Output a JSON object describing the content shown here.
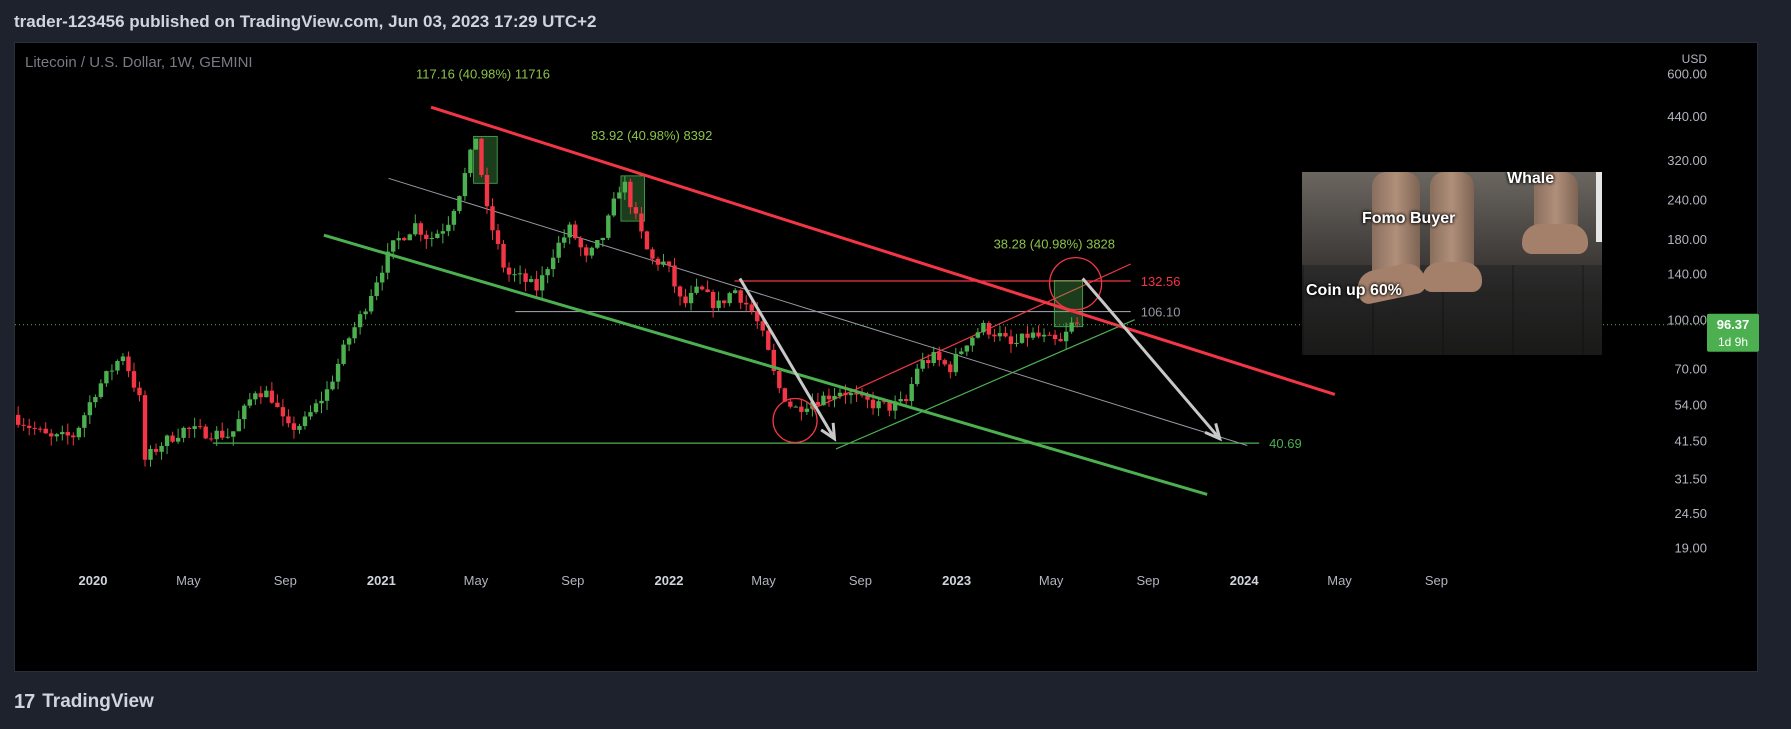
{
  "header": {
    "publish_line": "trader-123456 published on TradingView.com, Jun 03, 2023 17:29 UTC+2"
  },
  "footer": {
    "brand": "TradingView",
    "logo_glyph": "17"
  },
  "meme": {
    "label_whale": "Whale",
    "label_fomo": "Fomo Buyer",
    "label_coin": "Coin up 60%"
  },
  "chart_data": {
    "type": "candlestick",
    "title": "Litecoin / U.S. Dollar, 1W, GEMINI",
    "currency": "USD",
    "scale": "log",
    "ylim": [
      17,
      750
    ],
    "xlim": [
      "2019-09-24",
      "2024-10-25"
    ],
    "y_ticks": [
      "600.00",
      "440.00",
      "320.00",
      "240.00",
      "180.00",
      "140.00",
      "100.00",
      "70.00",
      "54.00",
      "41.50",
      "31.50",
      "24.50",
      "19.00"
    ],
    "x_ticks": [
      {
        "label": "2020",
        "date": "2020-01-01",
        "bold": true
      },
      {
        "label": "May",
        "date": "2020-05-01"
      },
      {
        "label": "Sep",
        "date": "2020-09-01"
      },
      {
        "label": "2021",
        "date": "2021-01-01",
        "bold": true
      },
      {
        "label": "May",
        "date": "2021-05-01"
      },
      {
        "label": "Sep",
        "date": "2021-09-01"
      },
      {
        "label": "2022",
        "date": "2022-01-01",
        "bold": true
      },
      {
        "label": "May",
        "date": "2022-05-01"
      },
      {
        "label": "Sep",
        "date": "2022-09-01"
      },
      {
        "label": "2023",
        "date": "2023-01-01",
        "bold": true
      },
      {
        "label": "May",
        "date": "2023-05-01"
      },
      {
        "label": "Sep",
        "date": "2023-09-01"
      },
      {
        "label": "2024",
        "date": "2024-01-01",
        "bold": true
      },
      {
        "label": "May",
        "date": "2024-05-01"
      },
      {
        "label": "Sep",
        "date": "2024-09-01"
      }
    ],
    "last_price": {
      "value": 96.37,
      "label": "96.37",
      "countdown": "1d 9h"
    },
    "price_path": [
      [
        "2019-09-28",
        50
      ],
      [
        "2019-10-20",
        46
      ],
      [
        "2019-11-15",
        42
      ],
      [
        "2019-12-15",
        43
      ],
      [
        "2020-01-12",
        60
      ],
      [
        "2020-02-15",
        78
      ],
      [
        "2020-03-08",
        55
      ],
      [
        "2020-03-14",
        36
      ],
      [
        "2020-04-01",
        40
      ],
      [
        "2020-05-01",
        45
      ],
      [
        "2020-06-01",
        44
      ],
      [
        "2020-07-01",
        43
      ],
      [
        "2020-08-01",
        60
      ],
      [
        "2020-08-20",
        58
      ],
      [
        "2020-09-10",
        45
      ],
      [
        "2020-10-01",
        47
      ],
      [
        "2020-11-01",
        60
      ],
      [
        "2020-11-25",
        85
      ],
      [
        "2020-12-15",
        105
      ],
      [
        "2021-01-05",
        140
      ],
      [
        "2021-01-25",
        175
      ],
      [
        "2021-02-20",
        200
      ],
      [
        "2021-03-10",
        180
      ],
      [
        "2021-04-01",
        200
      ],
      [
        "2021-04-20",
        265
      ],
      [
        "2021-05-08",
        380
      ],
      [
        "2021-05-22",
        220
      ],
      [
        "2021-06-15",
        140
      ],
      [
        "2021-07-05",
        135
      ],
      [
        "2021-07-25",
        125
      ],
      [
        "2021-08-15",
        165
      ],
      [
        "2021-09-05",
        195
      ],
      [
        "2021-09-25",
        155
      ],
      [
        "2021-10-15",
        180
      ],
      [
        "2021-11-10",
        280
      ],
      [
        "2021-11-25",
        215
      ],
      [
        "2021-12-15",
        155
      ],
      [
        "2022-01-05",
        150
      ],
      [
        "2022-01-25",
        110
      ],
      [
        "2022-02-15",
        125
      ],
      [
        "2022-03-10",
        110
      ],
      [
        "2022-04-01",
        125
      ],
      [
        "2022-04-25",
        105
      ],
      [
        "2022-05-10",
        85
      ],
      [
        "2022-05-25",
        62
      ],
      [
        "2022-06-15",
        52
      ],
      [
        "2022-07-05",
        55
      ],
      [
        "2022-07-25",
        57
      ],
      [
        "2022-08-15",
        60
      ],
      [
        "2022-09-05",
        56
      ],
      [
        "2022-09-25",
        54
      ],
      [
        "2022-10-15",
        53
      ],
      [
        "2022-11-05",
        55
      ],
      [
        "2022-11-20",
        72
      ],
      [
        "2022-12-10",
        76
      ],
      [
        "2022-12-30",
        70
      ],
      [
        "2023-01-20",
        85
      ],
      [
        "2023-02-10",
        95
      ],
      [
        "2023-03-01",
        90
      ],
      [
        "2023-03-20",
        82
      ],
      [
        "2023-04-10",
        90
      ],
      [
        "2023-04-30",
        87
      ],
      [
        "2023-05-20",
        84
      ],
      [
        "2023-06-03",
        96.37
      ]
    ],
    "overlays": {
      "levels": [
        {
          "value": 132.56,
          "label": "132.56",
          "color": "#f23645",
          "from": "2022-03-25",
          "to": "2023-08-10"
        },
        {
          "value": 106.1,
          "label": "106.10",
          "color": "#9598a1",
          "from": "2021-06-20",
          "to": "2023-08-10"
        },
        {
          "value": 40.69,
          "label": "40.69",
          "color": "#4caf50",
          "from": "2020-06-01",
          "to": "2024-01-20"
        }
      ],
      "down_channel_upper": {
        "color": "#f23645",
        "from": [
          "2021-03-05",
          470
        ],
        "to": [
          "2024-04-25",
          58
        ]
      },
      "down_channel_lower": {
        "color": "#4caf50",
        "from": [
          "2020-10-20",
          185
        ],
        "to": [
          "2023-11-15",
          28
        ]
      },
      "mid_line": {
        "color": "#9598a1",
        "from": [
          "2021-01-10",
          280
        ],
        "to": [
          "2024-01-05",
          40
        ]
      },
      "up_channel_upper": {
        "color": "#f23645",
        "from": [
          "2022-07-01",
          52
        ],
        "to": [
          "2023-08-10",
          150
        ]
      },
      "up_channel_lower": {
        "color": "#4caf50",
        "from": [
          "2022-08-01",
          39
        ],
        "to": [
          "2023-08-15",
          100
        ]
      },
      "arrows": [
        {
          "from": [
            "2022-04-01",
            135
          ],
          "to": [
            "2022-07-30",
            42
          ]
        },
        {
          "from": [
            "2023-06-10",
            135
          ],
          "to": [
            "2023-12-01",
            42
          ]
        }
      ],
      "circles": [
        {
          "center": [
            "2022-06-10",
            48
          ],
          "r": 22
        },
        {
          "center": [
            "2023-06-01",
            130
          ],
          "r": 26
        }
      ],
      "measure_boxes": [
        {
          "from": [
            "2021-04-28",
            270
          ],
          "to": [
            "2021-05-28",
            380
          ],
          "label": "117.16 (40.98%) 11716",
          "label_at": [
            "2021-05-10",
            580
          ]
        },
        {
          "from": [
            "2021-11-01",
            205
          ],
          "to": [
            "2021-12-01",
            285
          ],
          "label": "83.92 (40.98%) 8392",
          "label_at": [
            "2021-12-10",
            370
          ]
        },
        {
          "from": [
            "2023-05-05",
            95
          ],
          "to": [
            "2023-06-10",
            133
          ],
          "label": "38.28 (40.98%) 3828",
          "label_at": [
            "2023-05-05",
            168
          ]
        }
      ]
    }
  }
}
